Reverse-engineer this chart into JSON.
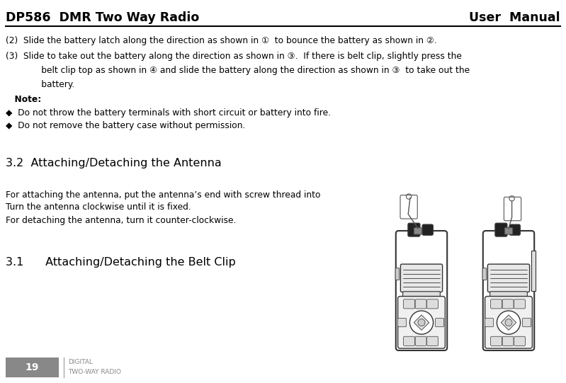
{
  "title_left": "DP586  DMR Two Way Radio",
  "title_right": "User  Manual",
  "page_number": "19",
  "footer_text1": "DIGITAL",
  "footer_text2": "TWO-WAY RADIO",
  "bg_color": "#ffffff",
  "page_num_bg": "#888888",
  "page_num_color": "#ffffff",
  "footer_color": "#888888",
  "line1": "(2)  Slide the battery latch along the direction as shown in ①  to bounce the battery as shown in ②.",
  "line2": "(3)  Slide to take out the battery along the direction as shown in ③.  If there is belt clip, slightly press the",
  "line3": "      belt clip top as shown in ④ and slide the battery along the direction as shown in ③  to take out the",
  "line4": "      battery.",
  "line5": "  Note:",
  "line6": "◆  Do not throw the battery terminals with short circuit or battery into fire.",
  "line7": "◆  Do not remove the battery case without permission.",
  "line8": "3.2  Attaching/Detaching the Antenna",
  "line9": "For attaching the antenna, put the antenna’s end with screw thread into",
  "line10": "Turn the antenna clockwise until it is fixed.",
  "line11": "For detaching the antenna, turn it counter-clockwise.",
  "line12": "3.1      Attaching/Detaching the Belt Clip",
  "radio_edge": "#333333",
  "radio_fill": "#ffffff",
  "radio_dark": "#222222",
  "radio_gray": "#999999",
  "radio_lgray": "#cccccc"
}
